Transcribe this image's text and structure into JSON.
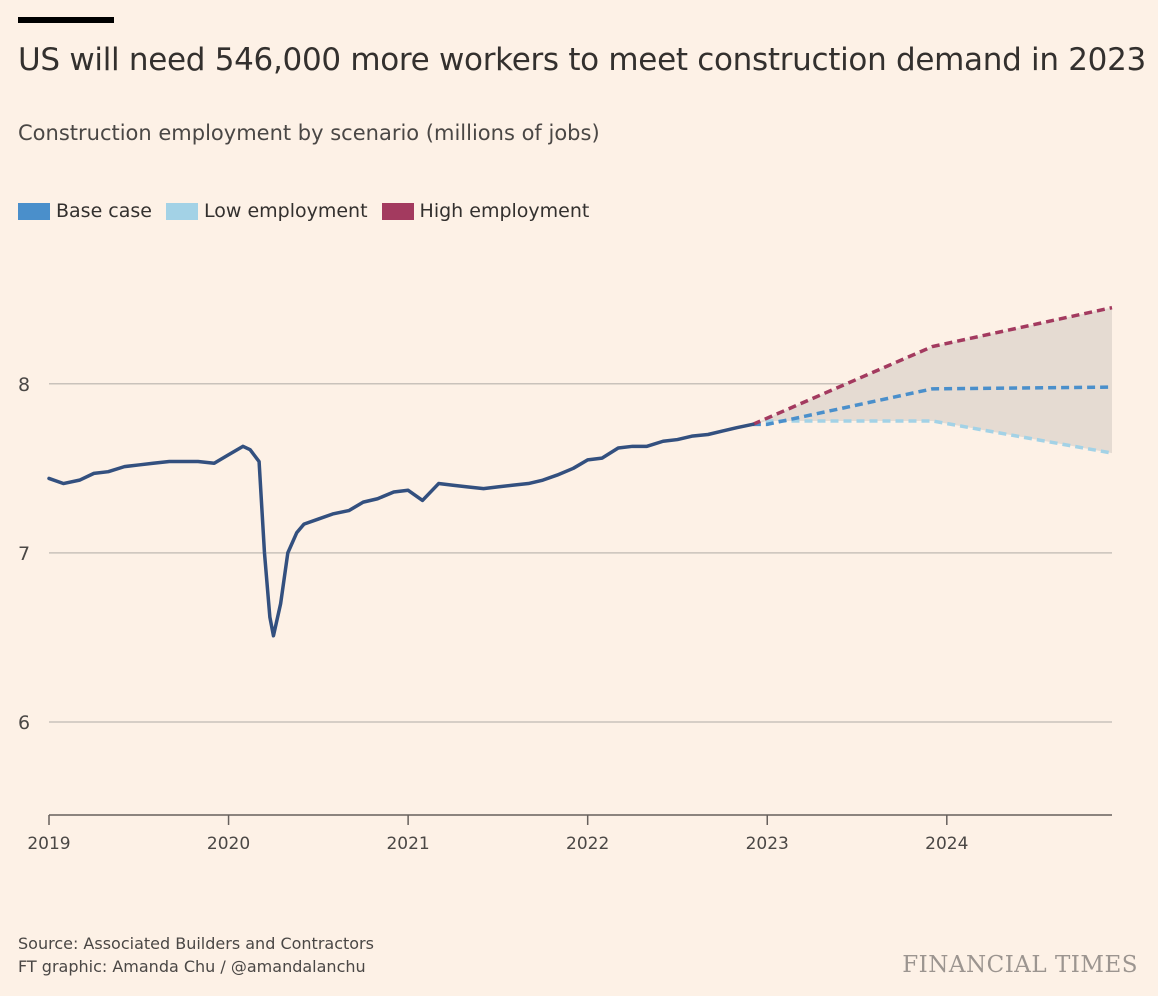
{
  "header": {
    "title": "US will need 546,000 more workers to meet construction demand in 2023",
    "subtitle": "Construction employment by scenario (millions of jobs)"
  },
  "footer": {
    "source": "Source: Associated Builders and Contractors",
    "credit": "FT graphic: Amanda Chu / @amandalanchu",
    "logo": "FINANCIAL TIMES"
  },
  "chart_data": {
    "type": "line",
    "title": "US will need 546,000 more workers to meet construction demand in 2023",
    "subtitle": "Construction employment by scenario (millions of jobs)",
    "xlabel": "",
    "ylabel": "",
    "xlim": [
      2019.0,
      2024.92
    ],
    "ylim": [
      5.45,
      8.85
    ],
    "x_ticks": [
      "2019",
      "2020",
      "2021",
      "2022",
      "2023",
      "2024"
    ],
    "y_ticks": [
      6,
      7,
      8
    ],
    "grid": "horizontal",
    "legend_placement": "top-left",
    "legend": [
      {
        "name": "Base case",
        "color": "#4a8fcb"
      },
      {
        "name": "Low employment",
        "color": "#a3d2e6"
      },
      {
        "name": "High employment",
        "color": "#a33a5f"
      }
    ],
    "historical": {
      "color": "#33507f",
      "points": [
        [
          2019.0,
          7.44
        ],
        [
          2019.08,
          7.41
        ],
        [
          2019.17,
          7.43
        ],
        [
          2019.25,
          7.47
        ],
        [
          2019.33,
          7.48
        ],
        [
          2019.42,
          7.51
        ],
        [
          2019.5,
          7.52
        ],
        [
          2019.58,
          7.53
        ],
        [
          2019.67,
          7.54
        ],
        [
          2019.75,
          7.54
        ],
        [
          2019.83,
          7.54
        ],
        [
          2019.92,
          7.53
        ],
        [
          2020.0,
          7.58
        ],
        [
          2020.08,
          7.63
        ],
        [
          2020.12,
          7.61
        ],
        [
          2020.17,
          7.54
        ],
        [
          2020.2,
          7.0
        ],
        [
          2020.23,
          6.62
        ],
        [
          2020.25,
          6.51
        ],
        [
          2020.29,
          6.7
        ],
        [
          2020.33,
          7.0
        ],
        [
          2020.38,
          7.12
        ],
        [
          2020.42,
          7.17
        ],
        [
          2020.5,
          7.2
        ],
        [
          2020.58,
          7.23
        ],
        [
          2020.67,
          7.25
        ],
        [
          2020.75,
          7.3
        ],
        [
          2020.83,
          7.32
        ],
        [
          2020.92,
          7.36
        ],
        [
          2021.0,
          7.37
        ],
        [
          2021.08,
          7.31
        ],
        [
          2021.17,
          7.41
        ],
        [
          2021.25,
          7.4
        ],
        [
          2021.33,
          7.39
        ],
        [
          2021.42,
          7.38
        ],
        [
          2021.5,
          7.39
        ],
        [
          2021.58,
          7.4
        ],
        [
          2021.67,
          7.41
        ],
        [
          2021.75,
          7.43
        ],
        [
          2021.83,
          7.46
        ],
        [
          2021.92,
          7.5
        ],
        [
          2022.0,
          7.55
        ],
        [
          2022.08,
          7.56
        ],
        [
          2022.17,
          7.62
        ],
        [
          2022.25,
          7.63
        ],
        [
          2022.33,
          7.63
        ],
        [
          2022.42,
          7.66
        ],
        [
          2022.5,
          7.67
        ],
        [
          2022.58,
          7.69
        ],
        [
          2022.67,
          7.7
        ],
        [
          2022.75,
          7.72
        ],
        [
          2022.83,
          7.74
        ],
        [
          2022.92,
          7.76
        ]
      ]
    },
    "series": [
      {
        "name": "Base case",
        "color": "#4a8fcb",
        "points": [
          [
            2022.92,
            7.76
          ],
          [
            2023.0,
            7.76
          ],
          [
            2023.92,
            7.97
          ],
          [
            2024.92,
            7.98
          ]
        ]
      },
      {
        "name": "Low employment",
        "color": "#a3d2e6",
        "points": [
          [
            2022.92,
            7.76
          ],
          [
            2023.0,
            7.78
          ],
          [
            2023.92,
            7.78
          ],
          [
            2024.92,
            7.59
          ]
        ]
      },
      {
        "name": "High employment",
        "color": "#a33a5f",
        "points": [
          [
            2022.92,
            7.76
          ],
          [
            2023.92,
            8.22
          ],
          [
            2024.92,
            8.45
          ]
        ]
      }
    ],
    "range_band": {
      "color": "#e5dbd2",
      "between": [
        "High employment",
        "Low employment"
      ]
    }
  }
}
